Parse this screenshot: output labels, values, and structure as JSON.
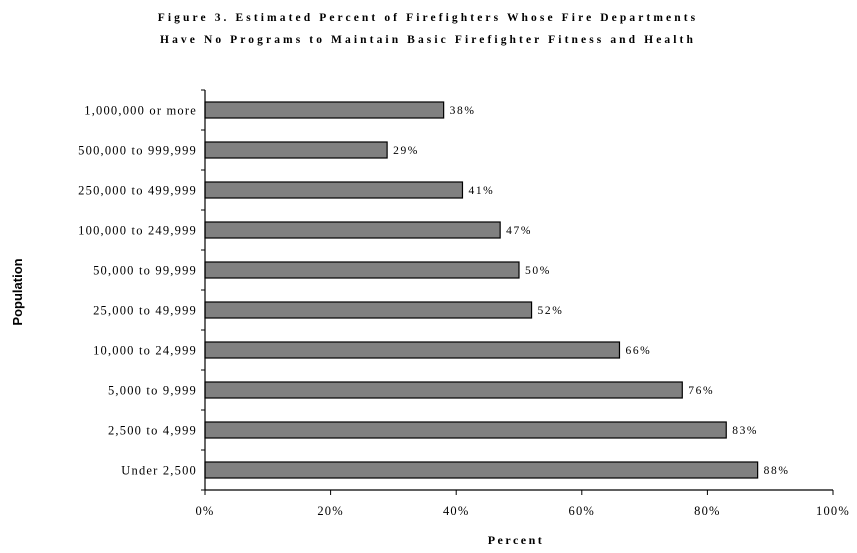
{
  "chart_data": {
    "type": "bar",
    "orientation": "horizontal",
    "title_lines": [
      "Figure 3.  Estimated Percent of Firefighters Whose Fire Departments",
      "Have No Programs to Maintain Basic Firefighter Fitness and Health"
    ],
    "xlabel": "Percent",
    "ylabel": "Population",
    "categories": [
      "1,000,000 or more",
      "500,000 to 999,999",
      "250,000 to 499,999",
      "100,000 to 249,999",
      "50,000 to 99,999",
      "25,000 to 49,999",
      "10,000 to 24,999",
      "5,000 to 9,999",
      "2,500 to 4,999",
      "Under 2,500"
    ],
    "values": [
      38,
      29,
      41,
      47,
      50,
      52,
      66,
      76,
      83,
      88
    ],
    "data_labels": [
      "38%",
      "29%",
      "41%",
      "47%",
      "50%",
      "52%",
      "66%",
      "76%",
      "83%",
      "88%"
    ],
    "xlim": [
      0,
      100
    ],
    "x_ticks": [
      0,
      20,
      40,
      60,
      80,
      100
    ],
    "x_tick_labels": [
      "0%",
      "20%",
      "40%",
      "60%",
      "80%",
      "100%"
    ],
    "bar_color": "#808080",
    "bar_edge_color": "#000000",
    "grid": false,
    "legend": "none"
  }
}
